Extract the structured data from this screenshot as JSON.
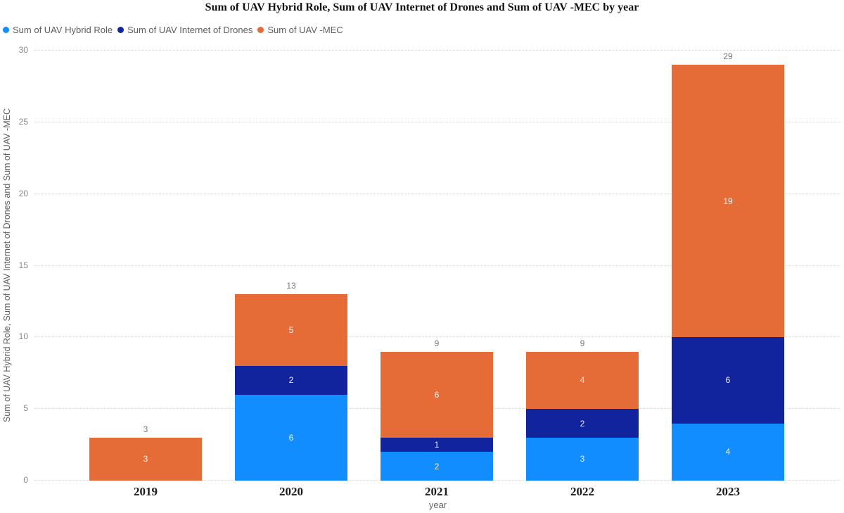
{
  "chart_data": {
    "type": "bar",
    "stacked": true,
    "title": "Sum of UAV Hybrid Role, Sum of UAV Internet of Drones and Sum of UAV -MEC by year",
    "categories": [
      "2019",
      "2020",
      "2021",
      "2022",
      "2023"
    ],
    "series": [
      {
        "name": "Sum of UAV Hybrid Role",
        "color": "#118DFF",
        "values": [
          0,
          6,
          2,
          3,
          4
        ]
      },
      {
        "name": "Sum of UAV Internet of Drones",
        "color": "#12239E",
        "values": [
          0,
          2,
          1,
          2,
          6
        ]
      },
      {
        "name": "Sum of UAV -MEC",
        "color": "#E66C37",
        "values": [
          3,
          5,
          6,
          4,
          19
        ]
      }
    ],
    "totals": [
      3,
      13,
      9,
      9,
      29
    ],
    "xlabel": "year",
    "ylabel": "Sum of UAV Hybrid Role, Sum of UAV Internet of Drones and Sum of UAV -MEC",
    "ylim": [
      0,
      30
    ],
    "yticks": [
      0,
      5,
      10,
      15,
      20,
      25,
      30
    ],
    "grid": "horizontal-dotted",
    "legend_position": "top-left",
    "colors": {
      "background": "#FFFFFF",
      "segment_label": "#F2F2F2",
      "total_label": "#777777",
      "axis_tick_text": "#8A8886",
      "legend_text": "#605E5C",
      "gridline": "#D9D9D9",
      "title_text": "#111111",
      "category_text": "#1A1A1A"
    }
  }
}
